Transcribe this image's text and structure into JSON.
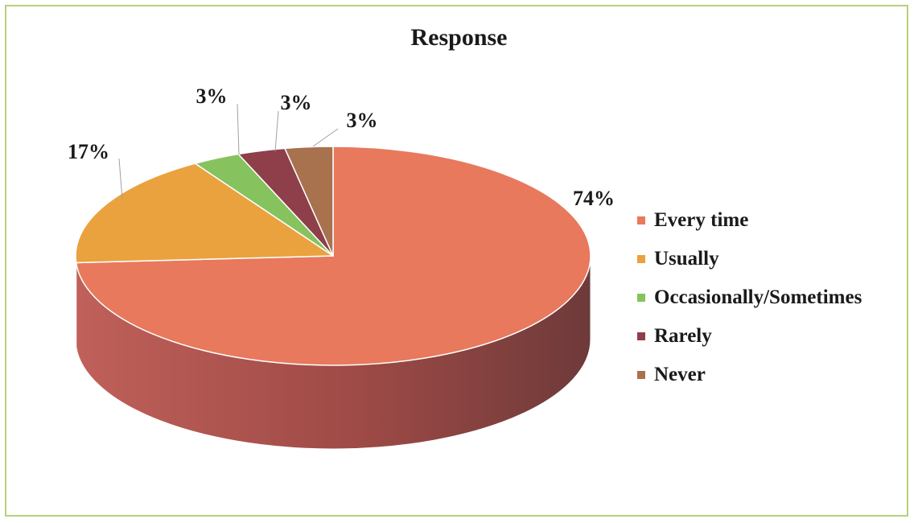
{
  "chart_data": {
    "type": "pie",
    "title": "Response",
    "categories": [
      "Every time",
      "Usually",
      "Occasionally/Sometimes",
      "Rarely",
      "Never"
    ],
    "values": [
      74,
      17,
      3,
      3,
      3
    ],
    "data_labels": [
      "74%",
      "17%",
      "3%",
      "3%",
      "3%"
    ],
    "colors": [
      "#e8795c",
      "#eaa23f",
      "#86c25e",
      "#8e3f4a",
      "#a8724e"
    ],
    "side_colors": [
      "#9e4a46",
      "#b27a2f",
      "#5f9242",
      "#5e2a32",
      "#75502f"
    ],
    "three_d": true,
    "legend_position": "right"
  }
}
